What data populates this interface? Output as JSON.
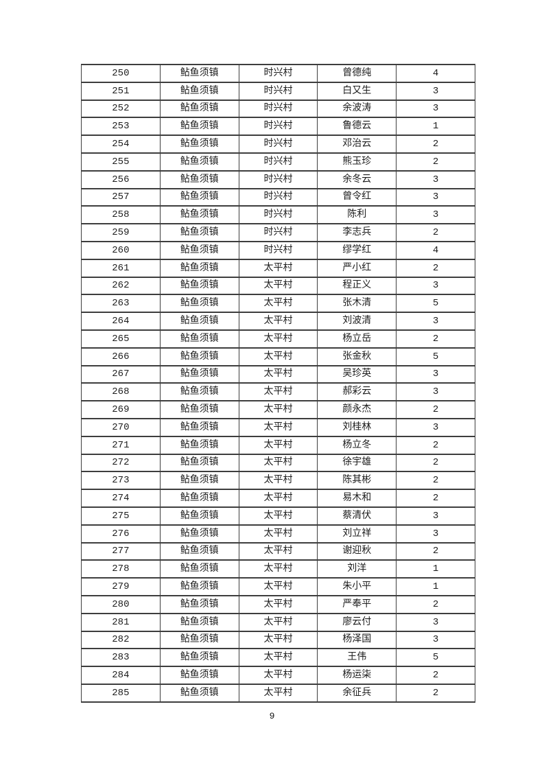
{
  "page": {
    "number": "9",
    "background_color": "#ffffff",
    "border_color": "#3d3d3d",
    "text_color": "#1c1c1c"
  },
  "table": {
    "rows": [
      {
        "no": "250",
        "town": "鲇鱼须镇",
        "village": "时兴村",
        "name": "曾德纯",
        "count": "4"
      },
      {
        "no": "251",
        "town": "鲇鱼须镇",
        "village": "时兴村",
        "name": "白又生",
        "count": "3"
      },
      {
        "no": "252",
        "town": "鲇鱼须镇",
        "village": "时兴村",
        "name": "余波涛",
        "count": "3"
      },
      {
        "no": "253",
        "town": "鲇鱼须镇",
        "village": "时兴村",
        "name": "鲁德云",
        "count": "1"
      },
      {
        "no": "254",
        "town": "鲇鱼须镇",
        "village": "时兴村",
        "name": "邓治云",
        "count": "2"
      },
      {
        "no": "255",
        "town": "鲇鱼须镇",
        "village": "时兴村",
        "name": "熊玉珍",
        "count": "2"
      },
      {
        "no": "256",
        "town": "鲇鱼须镇",
        "village": "时兴村",
        "name": "余冬云",
        "count": "3"
      },
      {
        "no": "257",
        "town": "鲇鱼须镇",
        "village": "时兴村",
        "name": "曾令红",
        "count": "3"
      },
      {
        "no": "258",
        "town": "鲇鱼须镇",
        "village": "时兴村",
        "name": "陈利",
        "count": "3"
      },
      {
        "no": "259",
        "town": "鲇鱼须镇",
        "village": "时兴村",
        "name": "李志兵",
        "count": "2"
      },
      {
        "no": "260",
        "town": "鲇鱼须镇",
        "village": "时兴村",
        "name": "缪学红",
        "count": "4"
      },
      {
        "no": "261",
        "town": "鲇鱼须镇",
        "village": "太平村",
        "name": "严小红",
        "count": "2"
      },
      {
        "no": "262",
        "town": "鲇鱼须镇",
        "village": "太平村",
        "name": "程正义",
        "count": "3"
      },
      {
        "no": "263",
        "town": "鲇鱼须镇",
        "village": "太平村",
        "name": "张木清",
        "count": "5"
      },
      {
        "no": "264",
        "town": "鲇鱼须镇",
        "village": "太平村",
        "name": "刘波清",
        "count": "3"
      },
      {
        "no": "265",
        "town": "鲇鱼须镇",
        "village": "太平村",
        "name": "杨立岳",
        "count": "2"
      },
      {
        "no": "266",
        "town": "鲇鱼须镇",
        "village": "太平村",
        "name": "张金秋",
        "count": "5"
      },
      {
        "no": "267",
        "town": "鲇鱼须镇",
        "village": "太平村",
        "name": "吴珍英",
        "count": "3"
      },
      {
        "no": "268",
        "town": "鲇鱼须镇",
        "village": "太平村",
        "name": "郝彩云",
        "count": "3"
      },
      {
        "no": "269",
        "town": "鲇鱼须镇",
        "village": "太平村",
        "name": "颜永杰",
        "count": "2"
      },
      {
        "no": "270",
        "town": "鲇鱼须镇",
        "village": "太平村",
        "name": "刘桂林",
        "count": "3"
      },
      {
        "no": "271",
        "town": "鲇鱼须镇",
        "village": "太平村",
        "name": "杨立冬",
        "count": "2"
      },
      {
        "no": "272",
        "town": "鲇鱼须镇",
        "village": "太平村",
        "name": "徐宇雄",
        "count": "2"
      },
      {
        "no": "273",
        "town": "鲇鱼须镇",
        "village": "太平村",
        "name": "陈其彬",
        "count": "2"
      },
      {
        "no": "274",
        "town": "鲇鱼须镇",
        "village": "太平村",
        "name": "易木和",
        "count": "2"
      },
      {
        "no": "275",
        "town": "鲇鱼须镇",
        "village": "太平村",
        "name": "蔡清伏",
        "count": "3"
      },
      {
        "no": "276",
        "town": "鲇鱼须镇",
        "village": "太平村",
        "name": "刘立祥",
        "count": "3"
      },
      {
        "no": "277",
        "town": "鲇鱼须镇",
        "village": "太平村",
        "name": "谢迎秋",
        "count": "2"
      },
      {
        "no": "278",
        "town": "鲇鱼须镇",
        "village": "太平村",
        "name": "刘洋",
        "count": "1"
      },
      {
        "no": "279",
        "town": "鲇鱼须镇",
        "village": "太平村",
        "name": "朱小平",
        "count": "1"
      },
      {
        "no": "280",
        "town": "鲇鱼须镇",
        "village": "太平村",
        "name": "严奉平",
        "count": "2"
      },
      {
        "no": "281",
        "town": "鲇鱼须镇",
        "village": "太平村",
        "name": "廖云付",
        "count": "3"
      },
      {
        "no": "282",
        "town": "鲇鱼须镇",
        "village": "太平村",
        "name": "杨泽国",
        "count": "3"
      },
      {
        "no": "283",
        "town": "鲇鱼须镇",
        "village": "太平村",
        "name": "王伟",
        "count": "5"
      },
      {
        "no": "284",
        "town": "鲇鱼须镇",
        "village": "太平村",
        "name": "杨运柒",
        "count": "2"
      },
      {
        "no": "285",
        "town": "鲇鱼须镇",
        "village": "太平村",
        "name": "余征兵",
        "count": "2"
      }
    ]
  }
}
